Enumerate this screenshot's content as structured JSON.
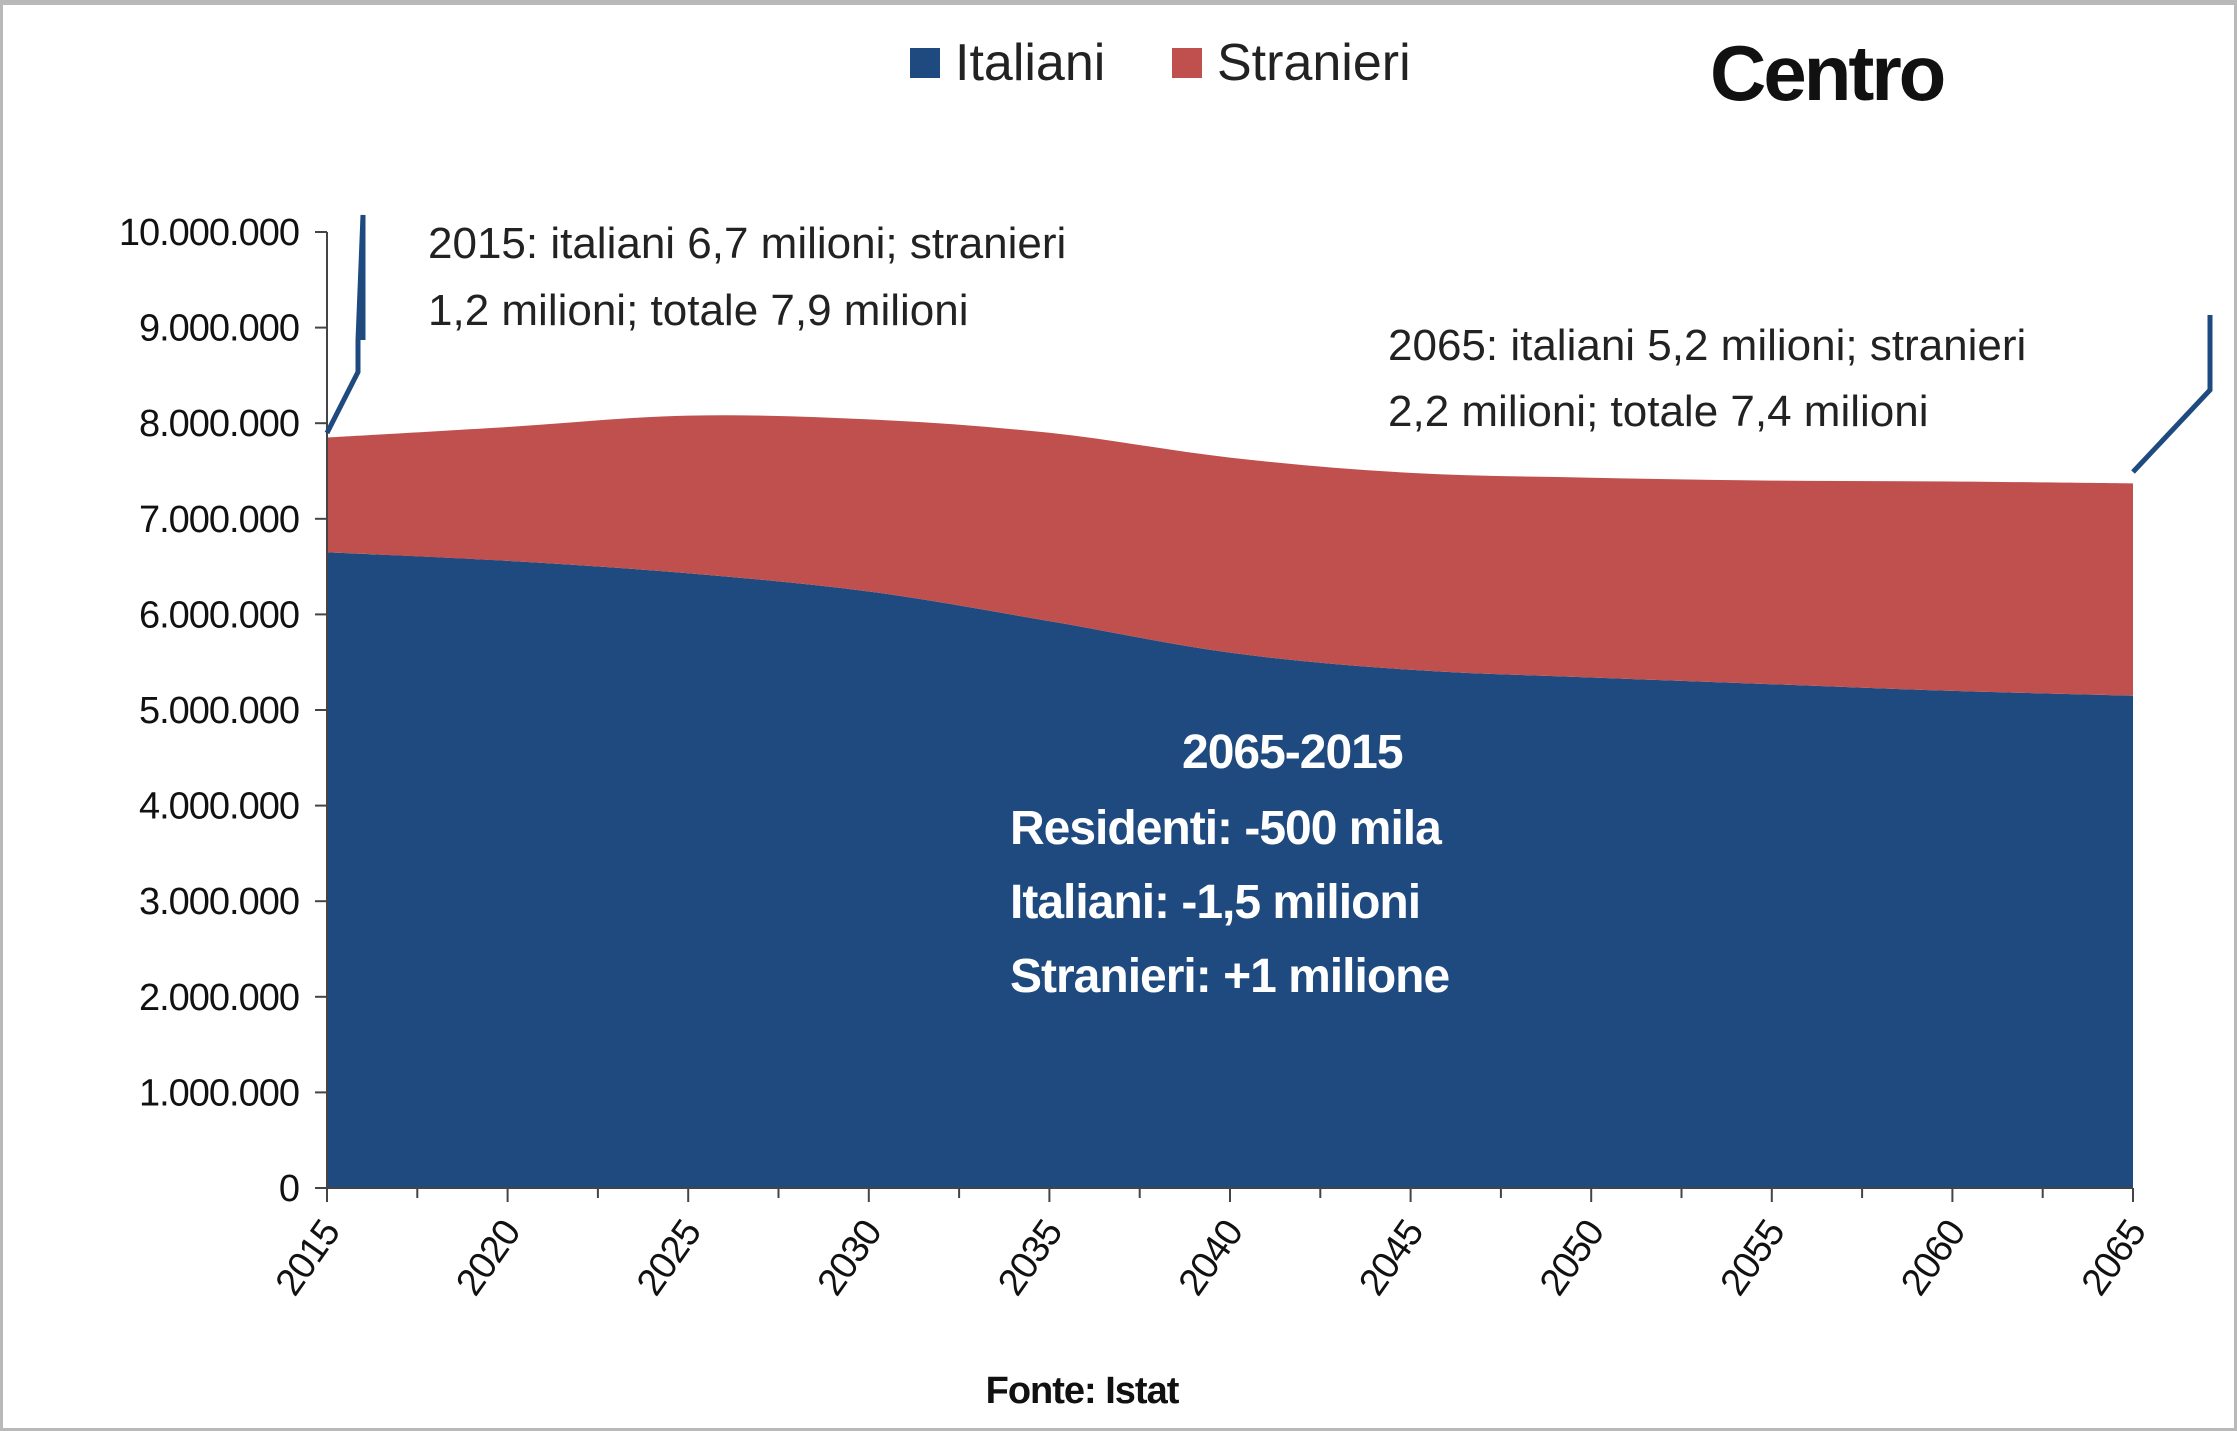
{
  "chart_data": {
    "type": "area",
    "stacked": true,
    "title": "Centro",
    "x": [
      2015,
      2020,
      2025,
      2030,
      2035,
      2040,
      2045,
      2050,
      2055,
      2060,
      2065
    ],
    "x_tick_labels": [
      "2015",
      "2020",
      "2025",
      "2030",
      "2035",
      "2040",
      "2045",
      "2050",
      "2055",
      "2060",
      "2065"
    ],
    "series": [
      {
        "name": "Italiani",
        "color": "#1f4a7f",
        "values": [
          6650000,
          6560000,
          6430000,
          6240000,
          5930000,
          5600000,
          5420000,
          5340000,
          5270000,
          5200000,
          5150000
        ]
      },
      {
        "name": "Stranieri",
        "color": "#c0504d",
        "values": [
          1200000,
          1400000,
          1650000,
          1800000,
          1970000,
          2040000,
          2060000,
          2090000,
          2130000,
          2190000,
          2220000
        ]
      }
    ],
    "ylim": [
      0,
      10000000
    ],
    "y_tick_labels": [
      "0",
      "1.000.000",
      "2.000.000",
      "3.000.000",
      "4.000.000",
      "5.000.000",
      "6.000.000",
      "7.000.000",
      "8.000.000",
      "9.000.000",
      "10.000.000"
    ],
    "legend_position": "top-center",
    "grid": false,
    "annotations": {
      "start_line1": "2015: italiani 6,7 milioni; stranieri",
      "start_line2": "1,2 milioni; totale 7,9 milioni",
      "end_line1": "2065: italiani 5,2 milioni; stranieri",
      "end_line2": "2,2 milioni; totale 7,4 milioni",
      "center_line1": "2065-2015",
      "center_line2": "Residenti: -500 mila",
      "center_line3": "Italiani: -1,5 milioni",
      "center_line4": "Stranieri: +1 milione"
    },
    "source": "Fonte: Istat"
  }
}
